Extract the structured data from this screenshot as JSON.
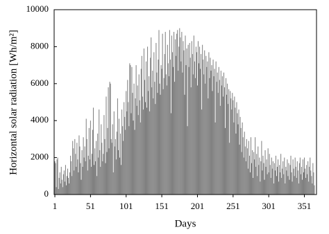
{
  "chart_data": {
    "type": "bar",
    "x_label": "Days",
    "y_label": "Horizontal solar radiation [Wh/m²]",
    "color": "#808080",
    "xlim": [
      0,
      368
    ],
    "xticks": [
      1,
      51,
      101,
      151,
      201,
      251,
      301,
      351
    ],
    "ylim": [
      0,
      10000
    ],
    "yticks": [
      0,
      2000,
      4000,
      6000,
      8000,
      10000
    ],
    "grid": false,
    "x": [
      1,
      2,
      3,
      4,
      5,
      6,
      7,
      8,
      9,
      10,
      11,
      12,
      13,
      14,
      15,
      16,
      17,
      18,
      19,
      20,
      21,
      22,
      23,
      24,
      25,
      26,
      27,
      28,
      29,
      30,
      31,
      32,
      33,
      34,
      35,
      36,
      37,
      38,
      39,
      40,
      41,
      42,
      43,
      44,
      45,
      46,
      47,
      48,
      49,
      50,
      51,
      52,
      53,
      54,
      55,
      56,
      57,
      58,
      59,
      60,
      61,
      62,
      63,
      64,
      65,
      66,
      67,
      68,
      69,
      70,
      71,
      72,
      73,
      74,
      75,
      76,
      77,
      78,
      79,
      80,
      81,
      82,
      83,
      84,
      85,
      86,
      87,
      88,
      89,
      90,
      91,
      92,
      93,
      94,
      95,
      96,
      97,
      98,
      99,
      100,
      101,
      102,
      103,
      104,
      105,
      106,
      107,
      108,
      109,
      110,
      111,
      112,
      113,
      114,
      115,
      116,
      117,
      118,
      119,
      120,
      121,
      122,
      123,
      124,
      125,
      126,
      127,
      128,
      129,
      130,
      131,
      132,
      133,
      134,
      135,
      136,
      137,
      138,
      139,
      140,
      141,
      142,
      143,
      144,
      145,
      146,
      147,
      148,
      149,
      150,
      151,
      152,
      153,
      154,
      155,
      156,
      157,
      158,
      159,
      160,
      161,
      162,
      163,
      164,
      165,
      166,
      167,
      168,
      169,
      170,
      171,
      172,
      173,
      174,
      175,
      176,
      177,
      178,
      179,
      180,
      181,
      182,
      183,
      184,
      185,
      186,
      187,
      188,
      189,
      190,
      191,
      192,
      193,
      194,
      195,
      196,
      197,
      198,
      199,
      200,
      201,
      202,
      203,
      204,
      205,
      206,
      207,
      208,
      209,
      210,
      211,
      212,
      213,
      214,
      215,
      216,
      217,
      218,
      219,
      220,
      221,
      222,
      223,
      224,
      225,
      226,
      227,
      228,
      229,
      230,
      231,
      232,
      233,
      234,
      235,
      236,
      237,
      238,
      239,
      240,
      241,
      242,
      243,
      244,
      245,
      246,
      247,
      248,
      249,
      250,
      251,
      252,
      253,
      254,
      255,
      256,
      257,
      258,
      259,
      260,
      261,
      262,
      263,
      264,
      265,
      266,
      267,
      268,
      269,
      270,
      271,
      272,
      273,
      274,
      275,
      276,
      277,
      278,
      279,
      280,
      281,
      282,
      283,
      284,
      285,
      286,
      287,
      288,
      289,
      290,
      291,
      292,
      293,
      294,
      295,
      296,
      297,
      298,
      299,
      300,
      301,
      302,
      303,
      304,
      305,
      306,
      307,
      308,
      309,
      310,
      311,
      312,
      313,
      314,
      315,
      316,
      317,
      318,
      319,
      320,
      321,
      322,
      323,
      324,
      325,
      326,
      327,
      328,
      329,
      330,
      331,
      332,
      333,
      334,
      335,
      336,
      337,
      338,
      339,
      340,
      341,
      342,
      343,
      344,
      345,
      346,
      347,
      348,
      349,
      350,
      351,
      352,
      353,
      354,
      355,
      356,
      357,
      358,
      359,
      360,
      361,
      362,
      363,
      364,
      365
    ],
    "values": [
      1800,
      1700,
      400,
      1900,
      2000,
      300,
      900,
      1200,
      600,
      1500,
      800,
      400,
      1100,
      1300,
      700,
      1600,
      500,
      1000,
      1400,
      900,
      600,
      1200,
      2100,
      1800,
      1000,
      2900,
      2500,
      1300,
      3000,
      2200,
      1500,
      2800,
      1900,
      1200,
      3200,
      2600,
      1700,
      800,
      2400,
      1500,
      3100,
      2000,
      2600,
      1800,
      4100,
      3000,
      1300,
      2100,
      3600,
      1900,
      4000,
      1500,
      2200,
      3500,
      4700,
      1600,
      2500,
      1800,
      2900,
      1000,
      3300,
      2000,
      4600,
      2400,
      1500,
      3800,
      2800,
      1800,
      2200,
      4300,
      3000,
      1700,
      5300,
      2300,
      3600,
      5800,
      2500,
      6100,
      6000,
      3000,
      2800,
      3800,
      1200,
      4500,
      2600,
      3000,
      1900,
      3400,
      5200,
      2400,
      4100,
      2000,
      3300,
      1600,
      4600,
      3700,
      2900,
      5000,
      4200,
      3500,
      5600,
      4500,
      6200,
      5000,
      3700,
      7100,
      7000,
      4400,
      6900,
      5500,
      4000,
      6000,
      3500,
      5200,
      7000,
      4800,
      5900,
      4300,
      6500,
      5100,
      3900,
      6800,
      7500,
      5300,
      4600,
      7900,
      6200,
      5000,
      7200,
      4700,
      8000,
      5600,
      6400,
      4500,
      7400,
      8500,
      5800,
      6700,
      5200,
      7700,
      6100,
      4900,
      8200,
      6600,
      5500,
      7300,
      8900,
      6000,
      5400,
      7000,
      6800,
      8700,
      5700,
      6300,
      7600,
      8800,
      6500,
      5900,
      8100,
      7100,
      6400,
      8900,
      7300,
      4400,
      8600,
      7700,
      6900,
      8800,
      6100,
      8400,
      7500,
      8700,
      8900,
      6700,
      8000,
      9000,
      8500,
      7200,
      8800,
      6600,
      8300,
      7800,
      5400,
      8600,
      7000,
      7900,
      3700,
      8100,
      6900,
      8200,
      7400,
      5800,
      8300,
      7600,
      6500,
      8600,
      7200,
      6300,
      8000,
      7700,
      5900,
      8300,
      7100,
      8000,
      6800,
      7600,
      4600,
      8100,
      7300,
      6500,
      7800,
      6000,
      7500,
      6900,
      7200,
      5200,
      7700,
      6300,
      7400,
      6700,
      7000,
      5600,
      7300,
      6400,
      6800,
      3900,
      7200,
      6100,
      6600,
      5500,
      6900,
      6200,
      4800,
      6700,
      5900,
      6400,
      5300,
      6600,
      5800,
      3600,
      6300,
      5400,
      6000,
      4900,
      5700,
      2800,
      5600,
      5200,
      4600,
      5500,
      5100,
      3900,
      5300,
      4700,
      3300,
      5000,
      4400,
      3800,
      4600,
      2700,
      4200,
      3600,
      2300,
      3900,
      3100,
      2000,
      3400,
      2600,
      1800,
      3000,
      2500,
      1400,
      2900,
      2100,
      1200,
      3100,
      1700,
      2400,
      900,
      2300,
      1900,
      3100,
      1500,
      2200,
      1000,
      2600,
      1600,
      2000,
      700,
      1800,
      2900,
      1300,
      2100,
      1700,
      800,
      2400,
      1500,
      1900,
      1100,
      2500,
      1200,
      2200,
      1600,
      900,
      2000,
      1400,
      1800,
      600,
      1700,
      1300,
      2100,
      1000,
      1500,
      1900,
      700,
      1600,
      1200,
      2200,
      900,
      1400,
      1800,
      1100,
      2000,
      600,
      1500,
      1300,
      1900,
      1000,
      1700,
      800,
      1600,
      2100,
      1200,
      700,
      1900,
      1400,
      1000,
      2000,
      1500,
      900,
      1800,
      1300,
      600,
      1700,
      2000,
      1100,
      1500,
      800,
      1900,
      1200,
      2000,
      1400,
      900,
      1600,
      1100,
      1800,
      700,
      1500,
      2000,
      1300,
      1000,
      600,
      1700,
      1200,
      500
    ]
  }
}
